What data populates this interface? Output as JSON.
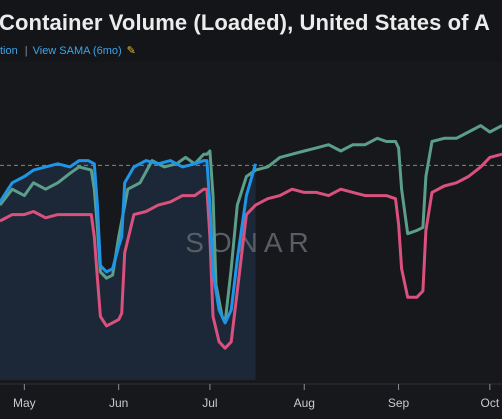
{
  "header": {
    "title": "Container Volume (Loaded), United States of A",
    "link_cut": "tion",
    "link_sama": "View SAMA (6mo)",
    "icon": "chart-icon"
  },
  "watermark": "SONAR",
  "colors": {
    "background": "#16181c",
    "green_series": "#5b9e8a",
    "pink_series": "#d9517c",
    "blue_series": "#1e95e6",
    "shaded_area": "#1d2b3d",
    "reference_line": "#6f9a4a",
    "link": "#3fa3e8"
  },
  "chart_data": {
    "type": "line",
    "title": "Container Volume (Loaded), United States of A",
    "x_tick_labels": [
      "May",
      "Jun",
      "Jul",
      "Aug",
      "Sep",
      "Oct"
    ],
    "x_tick_dates": [
      "2023-05-01",
      "2023-06-01",
      "2023-07-01",
      "2023-08-01",
      "2023-09-01",
      "2023-10-01"
    ],
    "x_range": [
      "2023-04-23",
      "2023-10-05"
    ],
    "y_axis": "unlabeled",
    "y_range": [
      0,
      100
    ],
    "reference_line": {
      "value": 67.5,
      "style": "dashed"
    },
    "shaded_region": {
      "from": "2023-04-23",
      "to": "2023-07-16",
      "top_series": "blue"
    },
    "grid": false,
    "legend": "none",
    "series": [
      {
        "color": "green",
        "dates": [
          "2023-04-23",
          "2023-04-27",
          "2023-05-01",
          "2023-05-04",
          "2023-05-08",
          "2023-05-12",
          "2023-05-16",
          "2023-05-19",
          "2023-05-23",
          "2023-05-24",
          "2023-05-25",
          "2023-05-26",
          "2023-05-28",
          "2023-05-30",
          "2023-06-01",
          "2023-06-04",
          "2023-06-08",
          "2023-06-12",
          "2023-06-16",
          "2023-06-20",
          "2023-06-23",
          "2023-06-26",
          "2023-06-29",
          "2023-06-30",
          "2023-07-01",
          "2023-07-02",
          "2023-07-03",
          "2023-07-05",
          "2023-07-06",
          "2023-07-08",
          "2023-07-10",
          "2023-07-13",
          "2023-07-16",
          "2023-07-20",
          "2023-07-24",
          "2023-07-28",
          "2023-08-01",
          "2023-08-05",
          "2023-08-09",
          "2023-08-13",
          "2023-08-17",
          "2023-08-21",
          "2023-08-25",
          "2023-08-28",
          "2023-08-31",
          "2023-09-01",
          "2023-09-02",
          "2023-09-04",
          "2023-09-07",
          "2023-09-09",
          "2023-09-10",
          "2023-09-12",
          "2023-09-16",
          "2023-09-20",
          "2023-09-24",
          "2023-09-28",
          "2023-10-01",
          "2023-10-05"
        ],
        "values": [
          55,
          60,
          58,
          62,
          60,
          62,
          65,
          67,
          66,
          60,
          48,
          34,
          32,
          33,
          45,
          60,
          62,
          69,
          67,
          68,
          70,
          68,
          71,
          71,
          72,
          58,
          30,
          20,
          18,
          35,
          55,
          64,
          66,
          67,
          70,
          71,
          72,
          73,
          74,
          72,
          74,
          74,
          76,
          75,
          75,
          73,
          60,
          46,
          47,
          48,
          64,
          75,
          76,
          76,
          78,
          80,
          78,
          80
        ]
      },
      {
        "color": "pink",
        "dates": [
          "2023-04-23",
          "2023-04-27",
          "2023-05-01",
          "2023-05-04",
          "2023-05-08",
          "2023-05-12",
          "2023-05-16",
          "2023-05-19",
          "2023-05-23",
          "2023-05-24",
          "2023-05-25",
          "2023-05-26",
          "2023-05-28",
          "2023-05-30",
          "2023-06-01",
          "2023-06-02",
          "2023-06-03",
          "2023-06-06",
          "2023-06-10",
          "2023-06-14",
          "2023-06-18",
          "2023-06-22",
          "2023-06-26",
          "2023-06-29",
          "2023-06-30",
          "2023-07-01",
          "2023-07-02",
          "2023-07-04",
          "2023-07-06",
          "2023-07-08",
          "2023-07-10",
          "2023-07-13",
          "2023-07-16",
          "2023-07-20",
          "2023-07-24",
          "2023-07-28",
          "2023-08-01",
          "2023-08-05",
          "2023-08-09",
          "2023-08-13",
          "2023-08-17",
          "2023-08-21",
          "2023-08-25",
          "2023-08-28",
          "2023-08-31",
          "2023-09-01",
          "2023-09-02",
          "2023-09-04",
          "2023-09-07",
          "2023-09-09",
          "2023-09-10",
          "2023-09-12",
          "2023-09-16",
          "2023-09-20",
          "2023-09-24",
          "2023-09-28",
          "2023-10-01",
          "2023-10-05"
        ],
        "values": [
          50,
          52,
          52,
          53,
          51,
          52,
          52,
          52,
          52,
          45,
          32,
          20,
          17,
          18,
          19,
          21,
          40,
          52,
          53,
          55,
          56,
          58,
          58,
          60,
          60,
          45,
          20,
          12,
          10,
          12,
          28,
          52,
          55,
          57,
          58,
          60,
          59,
          59,
          58,
          60,
          59,
          58,
          58,
          58,
          57,
          49,
          35,
          26,
          26,
          28,
          47,
          59,
          61,
          62,
          64,
          67,
          70,
          71
        ]
      },
      {
        "color": "blue",
        "dates": [
          "2023-04-23",
          "2023-04-27",
          "2023-05-01",
          "2023-05-04",
          "2023-05-08",
          "2023-05-12",
          "2023-05-16",
          "2023-05-19",
          "2023-05-22",
          "2023-05-24",
          "2023-05-25",
          "2023-05-26",
          "2023-05-28",
          "2023-05-30",
          "2023-06-01",
          "2023-06-02",
          "2023-06-03",
          "2023-06-06",
          "2023-06-10",
          "2023-06-14",
          "2023-06-18",
          "2023-06-22",
          "2023-06-26",
          "2023-06-29",
          "2023-06-30",
          "2023-07-01",
          "2023-07-02",
          "2023-07-04",
          "2023-07-06",
          "2023-07-08",
          "2023-07-10",
          "2023-07-13",
          "2023-07-16"
        ],
        "values": [
          56,
          62,
          64,
          66,
          67,
          68,
          67,
          69,
          69,
          68,
          55,
          36,
          34,
          35,
          42,
          45,
          62,
          67,
          69,
          68,
          69,
          67,
          68,
          69,
          69,
          55,
          34,
          22,
          18,
          22,
          38,
          58,
          68
        ]
      }
    ]
  }
}
